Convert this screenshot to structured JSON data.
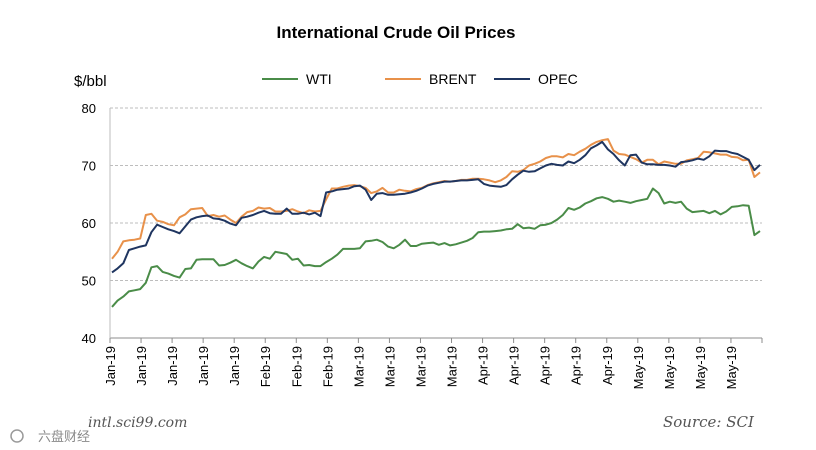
{
  "chart_data": {
    "type": "line",
    "title": "International Crude Oil Prices",
    "ylabel": "$/bbl",
    "ylim": [
      40,
      80
    ],
    "yticks": [
      40,
      50,
      60,
      70,
      80
    ],
    "grid": "horizontal dashed",
    "legend_position": "top-center",
    "x_tick_labels": [
      "Jan-19",
      "Jan-19",
      "Jan-19",
      "Jan-19",
      "Jan-19",
      "Feb-19",
      "Feb-19",
      "Feb-19",
      "Mar-19",
      "Mar-19",
      "Mar-19",
      "Mar-19",
      "Apr-19",
      "Apr-19",
      "Apr-19",
      "Apr-19",
      "Apr-19",
      "May-19",
      "May-19",
      "May-19",
      "May-19"
    ],
    "x_count": 116,
    "series": [
      {
        "name": "WTI",
        "color": "#4a8c48",
        "values": [
          45.4,
          46.5,
          47.2,
          48.1,
          48.3,
          48.5,
          49.6,
          52.3,
          52.5,
          51.5,
          51.2,
          50.8,
          50.5,
          52.0,
          52.1,
          53.6,
          53.7,
          53.7,
          53.7,
          52.6,
          52.7,
          53.1,
          53.6,
          53.0,
          52.5,
          52.1,
          53.3,
          54.1,
          53.8,
          55.0,
          54.8,
          54.6,
          53.6,
          53.8,
          52.6,
          52.7,
          52.5,
          52.5,
          53.2,
          53.8,
          54.5,
          55.5,
          55.5,
          55.5,
          55.6,
          56.8,
          56.9,
          57.1,
          56.7,
          55.9,
          55.6,
          56.2,
          57.1,
          56.0,
          56.0,
          56.4,
          56.5,
          56.6,
          56.2,
          56.5,
          56.1,
          56.3,
          56.6,
          56.9,
          57.4,
          58.4,
          58.5,
          58.5,
          58.6,
          58.7,
          58.9,
          59.0,
          59.8,
          59.1,
          59.2,
          59.0,
          59.6,
          59.7,
          60.0,
          60.6,
          61.4,
          62.6,
          62.3,
          62.7,
          63.4,
          63.8,
          64.3,
          64.5,
          64.2,
          63.7,
          63.9,
          63.7,
          63.5,
          63.8,
          64.0,
          64.2,
          66.0,
          65.2,
          63.4,
          63.7,
          63.5,
          63.7,
          62.5,
          61.9,
          62.0,
          62.1,
          61.7,
          62.1,
          61.5,
          62.0,
          62.8,
          62.9,
          63.1,
          63.0,
          57.9,
          58.6
        ]
      },
      {
        "name": "BRENT",
        "color": "#e8914a",
        "values": [
          53.8,
          55.0,
          56.8,
          57.0,
          57.1,
          57.3,
          61.4,
          61.6,
          60.4,
          60.2,
          59.8,
          59.6,
          61.0,
          61.5,
          62.4,
          62.5,
          62.6,
          61.2,
          61.4,
          61.1,
          61.3,
          60.6,
          60.0,
          61.1,
          61.9,
          62.1,
          62.7,
          62.5,
          62.6,
          62.0,
          62.0,
          62.1,
          62.4,
          62.0,
          61.7,
          62.2,
          62.0,
          62.1,
          64.1,
          66.0,
          66.0,
          66.3,
          66.5,
          66.6,
          66.4,
          66.1,
          65.2,
          65.5,
          66.1,
          65.3,
          65.3,
          65.8,
          65.6,
          65.5,
          65.9,
          66.1,
          66.6,
          66.9,
          67.1,
          67.3,
          67.2,
          67.3,
          67.5,
          67.5,
          67.7,
          67.7,
          67.6,
          67.4,
          67.1,
          67.4,
          68.0,
          69.0,
          68.9,
          69.2,
          70.0,
          70.3,
          70.7,
          71.3,
          71.6,
          71.6,
          71.4,
          72.0,
          71.8,
          72.4,
          72.9,
          73.6,
          74.1,
          74.4,
          74.6,
          72.6,
          72.0,
          71.9,
          71.5,
          71.1,
          70.5,
          71.0,
          71.0,
          70.2,
          70.7,
          70.5,
          70.3,
          70.3,
          70.9,
          71.1,
          71.3,
          72.4,
          72.3,
          72.1,
          71.9,
          71.9,
          71.5,
          71.4,
          70.9,
          71.0,
          68.0,
          68.8
        ]
      },
      {
        "name": "OPEC",
        "color": "#1f3560",
        "values": [
          51.4,
          52.1,
          53.0,
          55.3,
          55.6,
          55.9,
          56.1,
          58.4,
          59.7,
          59.3,
          58.9,
          58.6,
          58.2,
          59.4,
          60.6,
          61.0,
          61.2,
          61.3,
          60.8,
          60.7,
          60.4,
          59.9,
          59.6,
          60.9,
          61.1,
          61.4,
          61.8,
          62.1,
          61.7,
          61.6,
          61.6,
          62.5,
          61.6,
          61.6,
          61.8,
          61.5,
          61.8,
          61.2,
          65.3,
          65.5,
          65.8,
          65.9,
          66.0,
          66.4,
          66.5,
          65.8,
          64.0,
          65.1,
          65.2,
          64.9,
          64.9,
          65.0,
          65.1,
          65.3,
          65.6,
          66.0,
          66.5,
          66.8,
          67.0,
          67.2,
          67.2,
          67.3,
          67.4,
          67.4,
          67.5,
          67.6,
          66.8,
          66.5,
          66.4,
          66.3,
          66.6,
          67.6,
          68.4,
          69.1,
          68.9,
          69.0,
          69.5,
          70.0,
          70.3,
          70.1,
          70.0,
          70.7,
          70.4,
          71.0,
          71.8,
          73.0,
          73.5,
          74.1,
          72.8,
          72.0,
          70.9,
          70.0,
          71.8,
          71.9,
          70.5,
          70.2,
          70.2,
          70.1,
          70.1,
          70.0,
          69.8,
          70.6,
          70.7,
          70.9,
          71.2,
          71.0,
          71.6,
          72.6,
          72.5,
          72.5,
          72.2,
          72.0,
          71.5,
          71.0,
          69.2,
          70.1
        ]
      }
    ]
  },
  "footer": {
    "website": "intl.sci99.com",
    "source": "Source: SCI",
    "brand": "六盘财经"
  }
}
